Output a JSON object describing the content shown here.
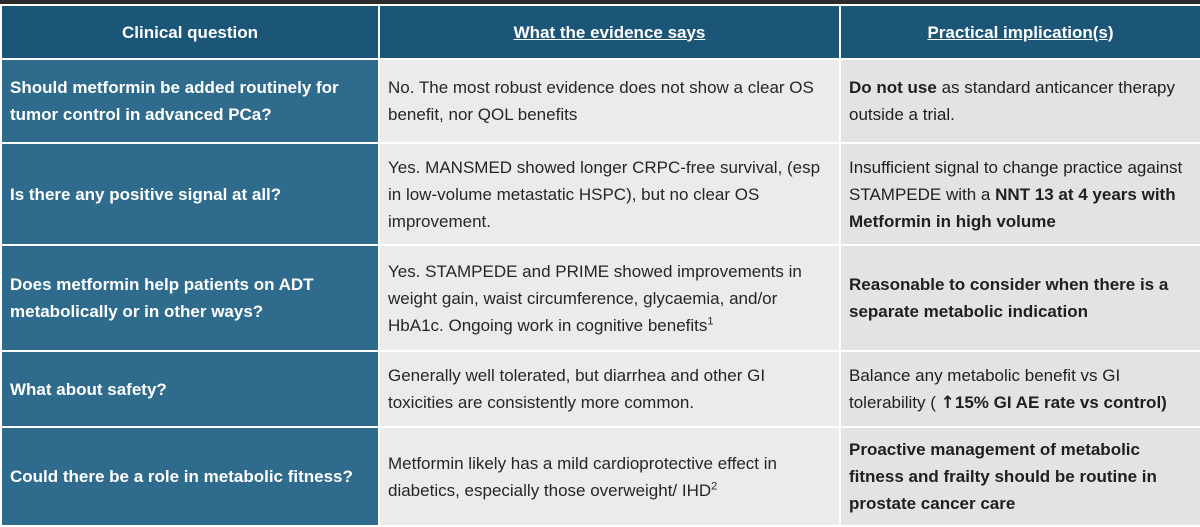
{
  "headers": {
    "question": "Clinical question",
    "evidence": "What the evidence says",
    "implication": "Practical implication(s)"
  },
  "rows": [
    {
      "question": "Should metformin be added routinely for tumor control in advanced PCa?",
      "evidence": "No. The most robust evidence does not show a clear OS benefit, nor QOL benefits",
      "implication_bold": "Do not use",
      "implication_rest": " as standard anticancer therapy outside a trial."
    },
    {
      "question": "Is there any positive signal at all?",
      "evidence": "Yes. MANSMED showed longer CRPC-free survival, (esp in low-volume metastatic HSPC), but no clear OS improvement.",
      "implication_plain": "Insufficient signal to change practice against STAMPEDE with a ",
      "implication_bold": "NNT 13 at 4 years with Metformin in high volume"
    },
    {
      "question": "Does metformin help patients on ADT metabolically or in other ways?",
      "evidence": "Yes. STAMPEDE and PRIME showed improvements in weight gain, waist circumference, glycaemia, and/or HbA1c. Ongoing work in cognitive benefits",
      "evidence_sup": "1",
      "implication_bold": "Reasonable to consider when there is a separate metabolic indication"
    },
    {
      "question": "What about safety?",
      "evidence": "Generally well tolerated, but diarrhea and other GI toxicities are consistently more common.",
      "implication_plain": "Balance any metabolic benefit vs GI tolerability ( ",
      "implication_arrow": "↑",
      "implication_bold": "15% GI AE rate vs control)"
    },
    {
      "question": "Could there be a role in metabolic fitness?",
      "evidence": "Metformin likely has a mild cardioprotective effect in diabetics, especially those overweight/ IHD",
      "evidence_sup": "2",
      "implication_bold": "Proactive management of metabolic fitness  and frailty should be routine in prostate cancer care"
    }
  ]
}
